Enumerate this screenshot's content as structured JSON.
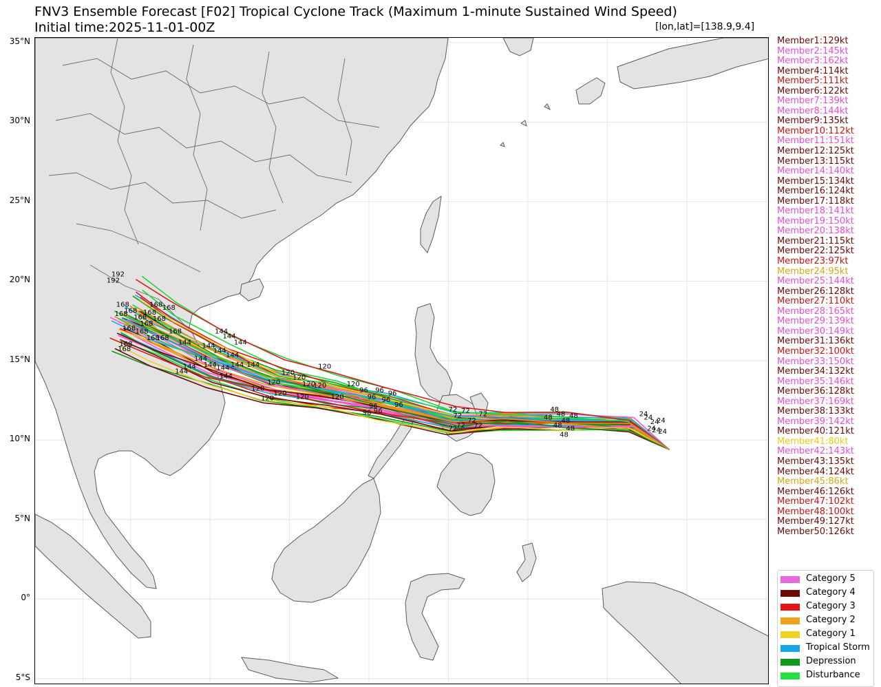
{
  "header": {
    "title": "FNV3 Ensemble Forecast [F02] Tropical Cyclone Track (Maximum 1-minute Sustained Wind Speed)",
    "subtitle": "Initial time:2025-11-01-00Z",
    "lonlat_readout": "[lon,lat]=[138.9,9.4]"
  },
  "map": {
    "lat_labels": [
      "35°N",
      "30°N",
      "25°N",
      "20°N",
      "15°N",
      "10°N",
      "5°N",
      "0°",
      "5°S"
    ],
    "lat_values": [
      35,
      30,
      25,
      20,
      15,
      10,
      5,
      0,
      -5
    ],
    "lon_range": [
      99,
      145.2
    ],
    "lat_range": [
      -5.4,
      35.3
    ],
    "gridline_lons": [
      102,
      105,
      110,
      115,
      120,
      125,
      130,
      135,
      140,
      145
    ],
    "colors": {
      "land": "#e3e3e3",
      "coastline": "#5a5a5a",
      "gridline": "#e6e6e6",
      "track_line_colors": [
        "#dc1c1c",
        "#f08c1a",
        "#f0d21e",
        "#6e0a0a",
        "#15a8e6",
        "#f25ad6",
        "#0f9a1e",
        "#22d43c"
      ]
    },
    "hour_labels": {
      "h24": "24",
      "h48": "48",
      "h72": "72",
      "h96": "96",
      "h120": "120",
      "h144": "144",
      "h168": "168",
      "h192": "192"
    },
    "hour_label_positions": [
      {
        "text": "24",
        "lon": 137.0,
        "lat": 11.5
      },
      {
        "text": "24",
        "lon": 137.3,
        "lat": 11.3
      },
      {
        "text": "24",
        "lon": 137.7,
        "lat": 11.0
      },
      {
        "text": "24",
        "lon": 137.5,
        "lat": 10.6
      },
      {
        "text": "24",
        "lon": 138.1,
        "lat": 11.1
      },
      {
        "text": "24",
        "lon": 137.8,
        "lat": 10.5
      },
      {
        "text": "24",
        "lon": 138.2,
        "lat": 10.4
      },
      {
        "text": "48",
        "lon": 131.0,
        "lat": 11.3
      },
      {
        "text": "48",
        "lon": 131.4,
        "lat": 11.8
      },
      {
        "text": "48",
        "lon": 131.8,
        "lat": 11.5
      },
      {
        "text": "48",
        "lon": 132.1,
        "lat": 11.1
      },
      {
        "text": "48",
        "lon": 131.6,
        "lat": 10.8
      },
      {
        "text": "48",
        "lon": 132.4,
        "lat": 10.6
      },
      {
        "text": "48",
        "lon": 132.0,
        "lat": 10.2
      },
      {
        "text": "48",
        "lon": 132.6,
        "lat": 11.4
      },
      {
        "text": "72",
        "lon": 125.0,
        "lat": 11.8
      },
      {
        "text": "72",
        "lon": 125.3,
        "lat": 11.4
      },
      {
        "text": "72",
        "lon": 125.8,
        "lat": 11.7
      },
      {
        "text": "72",
        "lon": 126.2,
        "lat": 11.1
      },
      {
        "text": "72",
        "lon": 125.5,
        "lat": 10.8
      },
      {
        "text": "72",
        "lon": 126.6,
        "lat": 10.8
      },
      {
        "text": "72",
        "lon": 125.0,
        "lat": 10.6
      },
      {
        "text": "72",
        "lon": 126.9,
        "lat": 11.5
      },
      {
        "text": "96",
        "lon": 119.4,
        "lat": 13.0
      },
      {
        "text": "96",
        "lon": 119.9,
        "lat": 12.6
      },
      {
        "text": "96",
        "lon": 120.4,
        "lat": 13.0
      },
      {
        "text": "96",
        "lon": 120.0,
        "lat": 12.0
      },
      {
        "text": "96",
        "lon": 120.8,
        "lat": 12.4
      },
      {
        "text": "96",
        "lon": 121.2,
        "lat": 12.8
      },
      {
        "text": "96",
        "lon": 119.6,
        "lat": 11.6
      },
      {
        "text": "96",
        "lon": 121.6,
        "lat": 12.1
      },
      {
        "text": "96",
        "lon": 120.3,
        "lat": 11.7
      },
      {
        "text": "120",
        "lon": 116.8,
        "lat": 14.5
      },
      {
        "text": "120",
        "lon": 114.5,
        "lat": 14.1
      },
      {
        "text": "120",
        "lon": 115.2,
        "lat": 13.8
      },
      {
        "text": "120",
        "lon": 113.6,
        "lat": 13.5
      },
      {
        "text": "120",
        "lon": 115.8,
        "lat": 13.4
      },
      {
        "text": "120",
        "lon": 116.5,
        "lat": 13.3
      },
      {
        "text": "120",
        "lon": 117.6,
        "lat": 12.6
      },
      {
        "text": "120",
        "lon": 112.6,
        "lat": 13.1
      },
      {
        "text": "120",
        "lon": 114.0,
        "lat": 12.8
      },
      {
        "text": "120",
        "lon": 115.4,
        "lat": 12.6
      },
      {
        "text": "120",
        "lon": 118.6,
        "lat": 13.4
      },
      {
        "text": "120",
        "lon": 113.2,
        "lat": 12.5
      },
      {
        "text": "144",
        "lon": 110.8,
        "lat": 16.4
      },
      {
        "text": "144",
        "lon": 111.5,
        "lat": 16.0
      },
      {
        "text": "144",
        "lon": 109.5,
        "lat": 15.8
      },
      {
        "text": "144",
        "lon": 110.2,
        "lat": 15.5
      },
      {
        "text": "144",
        "lon": 111.0,
        "lat": 15.2
      },
      {
        "text": "144",
        "lon": 109.0,
        "lat": 15.0
      },
      {
        "text": "144",
        "lon": 109.6,
        "lat": 14.6
      },
      {
        "text": "144",
        "lon": 110.4,
        "lat": 14.4
      },
      {
        "text": "144",
        "lon": 111.3,
        "lat": 14.6
      },
      {
        "text": "144",
        "lon": 108.3,
        "lat": 14.5
      },
      {
        "text": "144",
        "lon": 112.3,
        "lat": 14.6
      },
      {
        "text": "144",
        "lon": 108.0,
        "lat": 16.0
      },
      {
        "text": "144",
        "lon": 110.6,
        "lat": 13.9
      },
      {
        "text": "144",
        "lon": 107.8,
        "lat": 14.2
      },
      {
        "text": "144",
        "lon": 110.3,
        "lat": 16.7
      },
      {
        "text": "168",
        "lon": 104.1,
        "lat": 18.4
      },
      {
        "text": "168",
        "lon": 104.6,
        "lat": 18.0
      },
      {
        "text": "168",
        "lon": 105.2,
        "lat": 17.6
      },
      {
        "text": "168",
        "lon": 104.0,
        "lat": 17.8
      },
      {
        "text": "168",
        "lon": 105.8,
        "lat": 17.9
      },
      {
        "text": "168",
        "lon": 106.4,
        "lat": 17.5
      },
      {
        "text": "168",
        "lon": 104.5,
        "lat": 16.9
      },
      {
        "text": "168",
        "lon": 105.3,
        "lat": 16.7
      },
      {
        "text": "168",
        "lon": 106.0,
        "lat": 16.3
      },
      {
        "text": "168",
        "lon": 104.3,
        "lat": 15.9
      },
      {
        "text": "168",
        "lon": 106.6,
        "lat": 16.3
      },
      {
        "text": "168",
        "lon": 105.6,
        "lat": 17.2
      },
      {
        "text": "168",
        "lon": 107.0,
        "lat": 18.2
      },
      {
        "text": "168",
        "lon": 104.2,
        "lat": 15.6
      },
      {
        "text": "168",
        "lon": 107.4,
        "lat": 16.7
      },
      {
        "text": "168",
        "lon": 106.2,
        "lat": 18.4
      },
      {
        "text": "192",
        "lon": 103.8,
        "lat": 20.3
      },
      {
        "text": "192",
        "lon": 103.5,
        "lat": 19.9
      }
    ]
  },
  "members": [
    {
      "label": "Member1:129kt",
      "color": "#6e0a0a"
    },
    {
      "label": "Member2:145kt",
      "color": "#e64ed4"
    },
    {
      "label": "Member3:162kt",
      "color": "#e64ed4"
    },
    {
      "label": "Member4:114kt",
      "color": "#6e0a0a"
    },
    {
      "label": "Member5:111kt",
      "color": "#c81414"
    },
    {
      "label": "Member6:122kt",
      "color": "#6e0a0a"
    },
    {
      "label": "Member7:139kt",
      "color": "#e64ed4"
    },
    {
      "label": "Member8:144kt",
      "color": "#e64ed4"
    },
    {
      "label": "Member9:135kt",
      "color": "#6e0a0a"
    },
    {
      "label": "Member10:112kt",
      "color": "#c81414"
    },
    {
      "label": "Member11:151kt",
      "color": "#e64ed4"
    },
    {
      "label": "Member12:125kt",
      "color": "#6e0a0a"
    },
    {
      "label": "Member13:115kt",
      "color": "#6e0a0a"
    },
    {
      "label": "Member14:140kt",
      "color": "#e64ed4"
    },
    {
      "label": "Member15:134kt",
      "color": "#6e0a0a"
    },
    {
      "label": "Member16:124kt",
      "color": "#6e0a0a"
    },
    {
      "label": "Member17:118kt",
      "color": "#6e0a0a"
    },
    {
      "label": "Member18:141kt",
      "color": "#e64ed4"
    },
    {
      "label": "Member19:150kt",
      "color": "#e64ed4"
    },
    {
      "label": "Member20:138kt",
      "color": "#e64ed4"
    },
    {
      "label": "Member21:115kt",
      "color": "#6e0a0a"
    },
    {
      "label": "Member22:125kt",
      "color": "#6e0a0a"
    },
    {
      "label": "Member23:97kt",
      "color": "#c81414"
    },
    {
      "label": "Member24:95kt",
      "color": "#d8a814"
    },
    {
      "label": "Member25:144kt",
      "color": "#e64ed4"
    },
    {
      "label": "Member26:128kt",
      "color": "#6e0a0a"
    },
    {
      "label": "Member27:110kt",
      "color": "#c81414"
    },
    {
      "label": "Member28:165kt",
      "color": "#e64ed4"
    },
    {
      "label": "Member29:139kt",
      "color": "#e64ed4"
    },
    {
      "label": "Member30:149kt",
      "color": "#e64ed4"
    },
    {
      "label": "Member31:136kt",
      "color": "#6e0a0a"
    },
    {
      "label": "Member32:100kt",
      "color": "#c81414"
    },
    {
      "label": "Member33:150kt",
      "color": "#e64ed4"
    },
    {
      "label": "Member34:132kt",
      "color": "#6e0a0a"
    },
    {
      "label": "Member35:146kt",
      "color": "#e64ed4"
    },
    {
      "label": "Member36:128kt",
      "color": "#6e0a0a"
    },
    {
      "label": "Member37:169kt",
      "color": "#e64ed4"
    },
    {
      "label": "Member38:133kt",
      "color": "#6e0a0a"
    },
    {
      "label": "Member39:142kt",
      "color": "#e64ed4"
    },
    {
      "label": "Member40:121kt",
      "color": "#6e0a0a"
    },
    {
      "label": "Member41:80kt",
      "color": "#e6cc14"
    },
    {
      "label": "Member42:143kt",
      "color": "#e64ed4"
    },
    {
      "label": "Member43:135kt",
      "color": "#6e0a0a"
    },
    {
      "label": "Member44:124kt",
      "color": "#6e0a0a"
    },
    {
      "label": "Member45:86kt",
      "color": "#d8a814"
    },
    {
      "label": "Member46:126kt",
      "color": "#6e0a0a"
    },
    {
      "label": "Member47:102kt",
      "color": "#c81414"
    },
    {
      "label": "Member48:100kt",
      "color": "#c81414"
    },
    {
      "label": "Member49:127kt",
      "color": "#6e0a0a"
    },
    {
      "label": "Member50:126kt",
      "color": "#6e0a0a"
    }
  ],
  "legend": [
    {
      "label": "Category 5",
      "color": "#ea66e0"
    },
    {
      "label": "Category 4",
      "color": "#6e0a0a"
    },
    {
      "label": "Category 3",
      "color": "#e61414"
    },
    {
      "label": "Category 2",
      "color": "#f0a01e"
    },
    {
      "label": "Category 1",
      "color": "#f0d21e"
    },
    {
      "label": "Tropical Storm",
      "color": "#15a8e6"
    },
    {
      "label": "Depression",
      "color": "#0f9a1e"
    },
    {
      "label": "Disturbance",
      "color": "#22e040"
    }
  ]
}
